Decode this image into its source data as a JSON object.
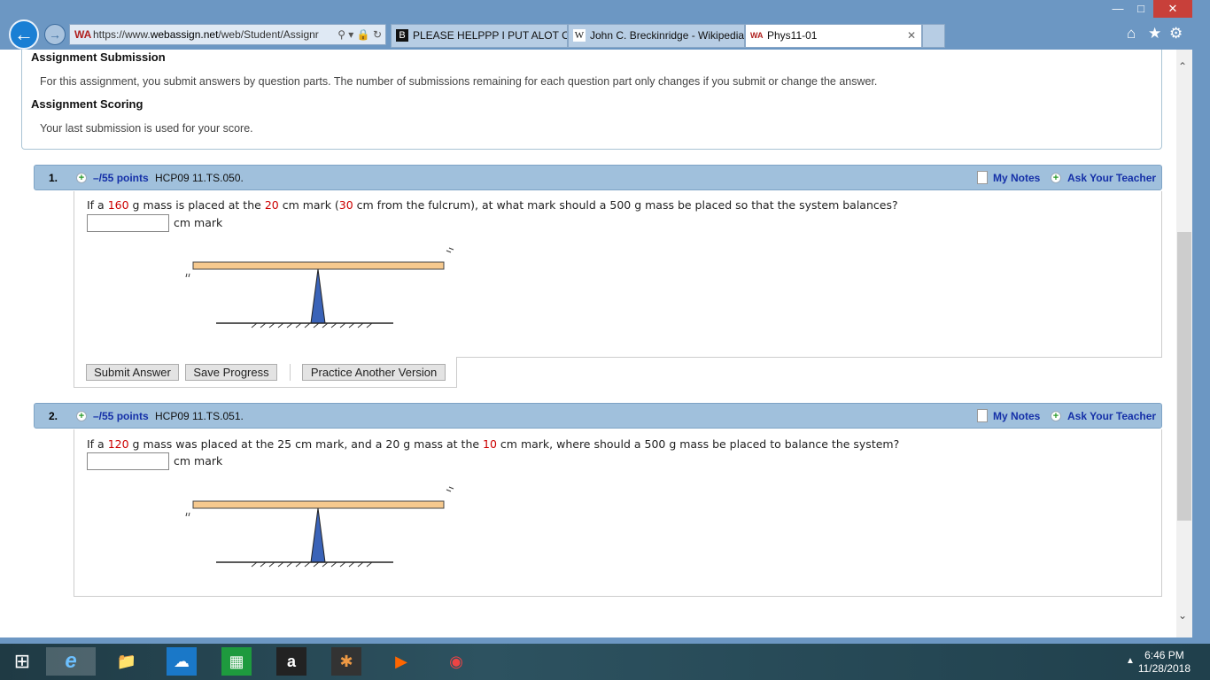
{
  "browser": {
    "url_scheme": "https://www.",
    "url_host": "webassign.net",
    "url_path": "/web/Student/Assignr",
    "tabs": [
      {
        "label": "PLEASE HELPPP I PUT ALOT O...",
        "icon": "B"
      },
      {
        "label": "John C. Breckinridge - Wikipedia",
        "icon": "W"
      },
      {
        "label": "Phys11-01",
        "icon": "WA"
      }
    ]
  },
  "info": {
    "submission_heading": "Assignment Submission",
    "submission_text": "For this assignment, you submit answers by question parts. The number of submissions remaining for each question part only changes if you submit or change the answer.",
    "scoring_heading": "Assignment Scoring",
    "scoring_text": "Your last submission is used for your score."
  },
  "questions": [
    {
      "number": "1.",
      "points": "–/55 points",
      "code": "HCP09 11.TS.050.",
      "my_notes": "My Notes",
      "ask_teacher": "Ask Your Teacher",
      "text": [
        "If a ",
        "160",
        " g mass is placed at the ",
        "20",
        " cm mark (",
        "30",
        " cm from the fulcrum), at what mark should a 500 g mass be placed so that the system balances?"
      ],
      "answer_value": "",
      "unit": "cm mark"
    },
    {
      "number": "2.",
      "points": "–/55 points",
      "code": "HCP09 11.TS.051.",
      "my_notes": "My Notes",
      "ask_teacher": "Ask Your Teacher",
      "text": [
        "If a ",
        "120",
        " g mass was placed at the 25 cm mark, and a 20 g mass at the ",
        "10",
        " cm mark, where should a 500 g mass be placed to balance the system?"
      ],
      "answer_value": "",
      "unit": "cm mark"
    }
  ],
  "buttons": {
    "submit": "Submit Answer",
    "save": "Save Progress",
    "practice": "Practice Another Version"
  },
  "colors": {
    "highlight": "#cc0000",
    "link": "#1530a8",
    "question_bar": "#a0c0dc"
  },
  "taskbar": {
    "time": "6:46 PM",
    "date": "11/28/2018"
  }
}
